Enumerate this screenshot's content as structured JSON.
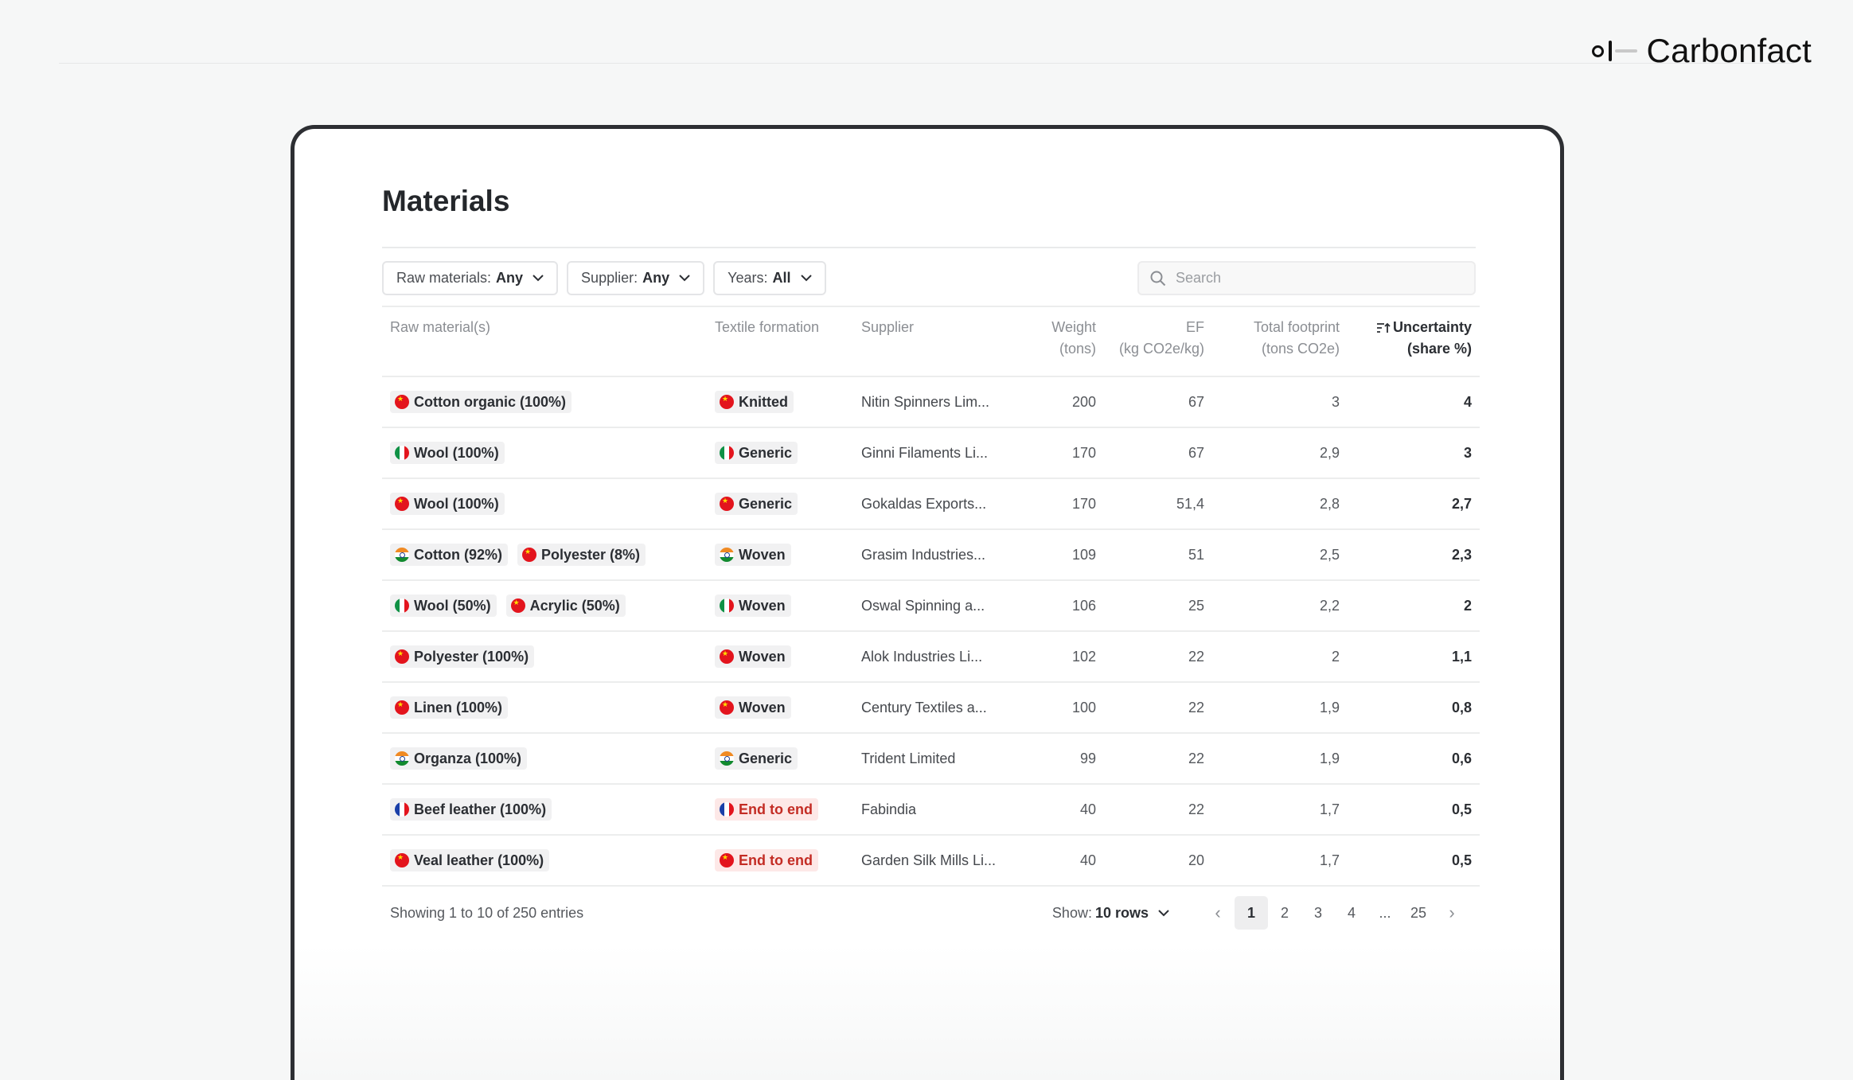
{
  "brand": {
    "name": "Carbonfact"
  },
  "page": {
    "title": "Materials"
  },
  "filters": [
    {
      "label": "Raw materials:",
      "value": "Any"
    },
    {
      "label": "Supplier:",
      "value": "Any"
    },
    {
      "label": "Years:",
      "value": "All"
    }
  ],
  "search": {
    "placeholder": "Search",
    "value": ""
  },
  "table": {
    "headers": {
      "raw_materials": "Raw material(s)",
      "textile_formation": "Textile formation",
      "supplier": "Supplier",
      "weight_line1": "Weight",
      "weight_line2": "(tons)",
      "ef_line1": "EF",
      "ef_line2": "(kg CO2e/kg)",
      "footprint_line1": "Total footprint",
      "footprint_line2": "(tons CO2e)",
      "uncertainty_line1": "Uncertainty",
      "uncertainty_line2": "(share %)"
    },
    "rows": [
      {
        "materials": [
          {
            "flag": "cn",
            "label": "Cotton organic (100%)"
          }
        ],
        "formation": {
          "flag": "cn",
          "label": "Knitted"
        },
        "supplier": "Nitin Spinners Lim...",
        "weight": "200",
        "ef": "67",
        "footprint": "3",
        "uncertainty": "4"
      },
      {
        "materials": [
          {
            "flag": "it",
            "label": "Wool (100%)"
          }
        ],
        "formation": {
          "flag": "it",
          "label": "Generic"
        },
        "supplier": "Ginni Filaments Li...",
        "weight": "170",
        "ef": "67",
        "footprint": "2,9",
        "uncertainty": "3"
      },
      {
        "materials": [
          {
            "flag": "cn",
            "label": "Wool (100%)"
          }
        ],
        "formation": {
          "flag": "cn",
          "label": "Generic"
        },
        "supplier": "Gokaldas Exports...",
        "weight": "170",
        "ef": "51,4",
        "footprint": "2,8",
        "uncertainty": "2,7"
      },
      {
        "materials": [
          {
            "flag": "in",
            "label": "Cotton (92%)"
          },
          {
            "flag": "cn",
            "label": "Polyester (8%)"
          }
        ],
        "formation": {
          "flag": "in",
          "label": "Woven"
        },
        "supplier": "Grasim Industries...",
        "weight": "109",
        "ef": "51",
        "footprint": "2,5",
        "uncertainty": "2,3"
      },
      {
        "materials": [
          {
            "flag": "it",
            "label": "Wool (50%)"
          },
          {
            "flag": "cn",
            "label": "Acrylic (50%)"
          }
        ],
        "formation": {
          "flag": "it",
          "label": "Woven"
        },
        "supplier": "Oswal Spinning a...",
        "weight": "106",
        "ef": "25",
        "footprint": "2,2",
        "uncertainty": "2"
      },
      {
        "materials": [
          {
            "flag": "cn",
            "label": "Polyester (100%)"
          }
        ],
        "formation": {
          "flag": "cn",
          "label": "Woven"
        },
        "supplier": "Alok Industries Li...",
        "weight": "102",
        "ef": "22",
        "footprint": "2",
        "uncertainty": "1,1"
      },
      {
        "materials": [
          {
            "flag": "cn",
            "label": "Linen (100%)"
          }
        ],
        "formation": {
          "flag": "cn",
          "label": "Woven"
        },
        "supplier": "Century Textiles a...",
        "weight": "100",
        "ef": "22",
        "footprint": "1,9",
        "uncertainty": "0,8"
      },
      {
        "materials": [
          {
            "flag": "in",
            "label": "Organza (100%)"
          }
        ],
        "formation": {
          "flag": "in",
          "label": "Generic"
        },
        "supplier": "Trident Limited",
        "weight": "99",
        "ef": "22",
        "footprint": "1,9",
        "uncertainty": "0,6"
      },
      {
        "materials": [
          {
            "flag": "fr",
            "label": "Beef leather (100%)"
          }
        ],
        "formation": {
          "flag": "fr",
          "label": "End to end",
          "highlight": true
        },
        "supplier": "Fabindia",
        "weight": "40",
        "ef": "22",
        "footprint": "1,7",
        "uncertainty": "0,5"
      },
      {
        "materials": [
          {
            "flag": "cn",
            "label": "Veal leather (100%)"
          }
        ],
        "formation": {
          "flag": "cn",
          "label": "End to end",
          "highlight": true
        },
        "supplier": "Garden Silk Mills Li...",
        "weight": "40",
        "ef": "20",
        "footprint": "1,7",
        "uncertainty": "0,5"
      }
    ]
  },
  "footer": {
    "entries_text": "Showing 1 to 10 of 250 entries",
    "show_label": "Show:",
    "show_value": "10 rows",
    "pages": [
      "1",
      "2",
      "3",
      "4",
      "...",
      "25"
    ],
    "current_page": "1"
  },
  "icons": {
    "sort": "sort-ascending-icon",
    "search": "search-icon",
    "chevron": "chevron-down-icon",
    "prev": "chevron-left-icon",
    "next": "chevron-right-icon"
  }
}
